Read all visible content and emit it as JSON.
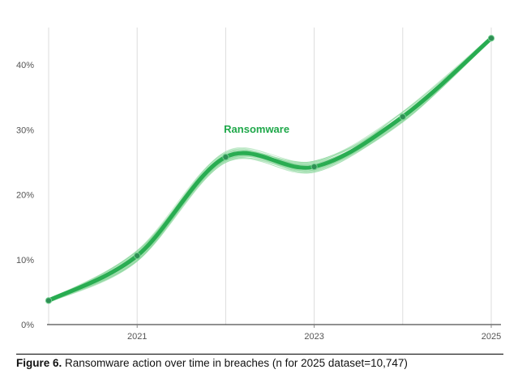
{
  "caption": {
    "figure_label": "Figure 6.",
    "text": " Ransomware action over time in breaches (n for 2025 dataset=10,747)"
  },
  "chart_data": {
    "type": "line",
    "x": [
      2020,
      2021,
      2022,
      2023,
      2024,
      2025
    ],
    "x_ticks": [
      {
        "value": 2021,
        "label": "2021"
      },
      {
        "value": 2023,
        "label": "2023"
      },
      {
        "value": 2025,
        "label": "2025"
      }
    ],
    "y_ticks": [
      {
        "value": 0,
        "label": "0%"
      },
      {
        "value": 10,
        "label": "10%"
      },
      {
        "value": 20,
        "label": "20%"
      },
      {
        "value": 30,
        "label": "30%"
      },
      {
        "value": 40,
        "label": "40%"
      }
    ],
    "xlim": [
      2020,
      2025
    ],
    "ylim": [
      0,
      45
    ],
    "grid": "vertical",
    "series": [
      {
        "name": "Ransomware",
        "values": [
          3.7,
          10.6,
          25.8,
          24.3,
          32.0,
          44.1
        ],
        "color": "#1fa84a"
      }
    ],
    "series_label_color": "#1fa84a",
    "sample_line_color": "#8fd9a0"
  }
}
